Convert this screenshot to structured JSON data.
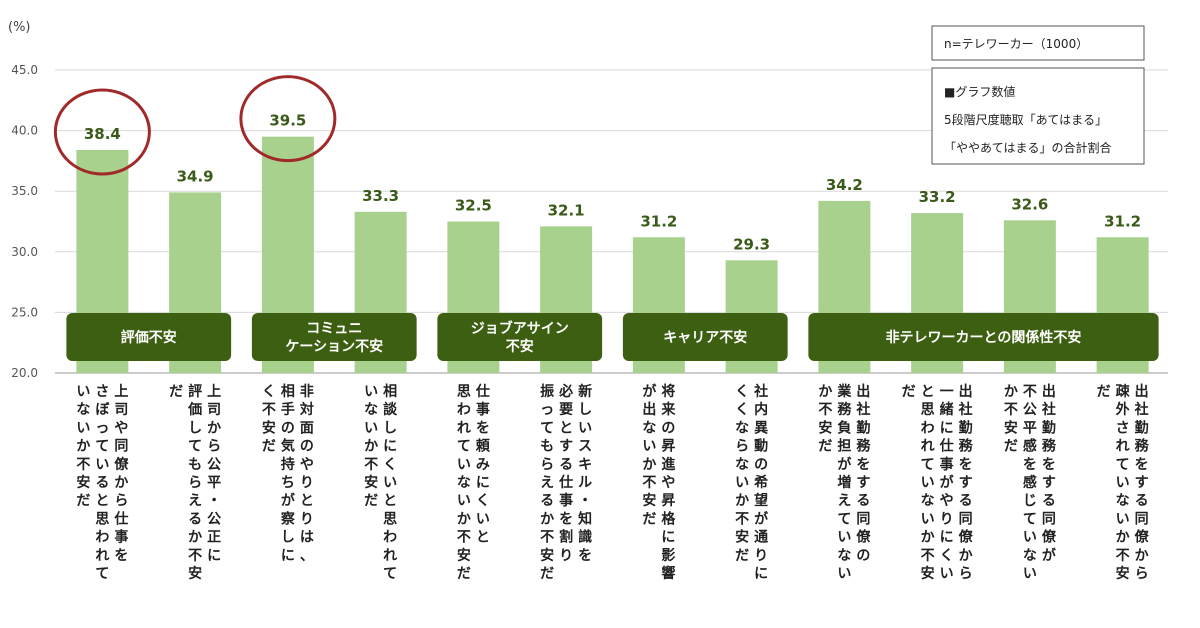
{
  "chart_data": {
    "type": "bar",
    "ylabel": "(%)",
    "ylim": [
      20,
      45
    ],
    "yticks": [
      "20.0",
      "25.0",
      "30.0",
      "35.0",
      "40.0",
      "45.0"
    ],
    "grid": true,
    "bar_color": "#a9d18e",
    "label_color": "#3a5a1a",
    "group_color": "#3d5f12",
    "highlight_color": "#a02a2a",
    "categories": [
      [
        "上司や同僚から仕事を",
        "さぼっていると思われて",
        "いないか不安だ"
      ],
      [
        "上司から公平・公正に",
        "評価してもらえるか不安",
        "だ"
      ],
      [
        "非対面のやりとりは、",
        "相手の気持ちが察しに",
        "く不安だ"
      ],
      [
        "相談しにくいと思われて",
        "いないか不安だ"
      ],
      [
        "仕事を頼みにくいと",
        "思われていないか不安だ"
      ],
      [
        "新しいスキル・知識を",
        "必要とする仕事を割り",
        "振ってもらえるか不安だ"
      ],
      [
        "将来の昇進や昇格に影響",
        "が出ないか不安だ"
      ],
      [
        "社内異動の希望が通りに",
        "くくならないか不安だ"
      ],
      [
        "出社勤務をする同僚の",
        "業務負担が増えていない",
        "か不安だ"
      ],
      [
        "出社勤務をする同僚から",
        "一緒に仕事がやりにくい",
        "と思われていないか不安",
        "だ"
      ],
      [
        "出社勤務をする同僚が",
        "不公平感を感じていない",
        "か不安だ"
      ],
      [
        "出社勤務をする同僚から",
        "疎外されていないか不安",
        "だ"
      ]
    ],
    "values": [
      38.4,
      34.9,
      39.5,
      33.3,
      32.5,
      32.1,
      31.2,
      29.3,
      34.2,
      33.2,
      32.6,
      31.2
    ],
    "value_labels": [
      "38.4",
      "34.9",
      "39.5",
      "33.3",
      "32.5",
      "32.1",
      "31.2",
      "29.3",
      "34.2",
      "33.2",
      "32.6",
      "31.2"
    ],
    "highlighted": [
      0,
      2
    ],
    "groups": [
      {
        "label": [
          "評価不安"
        ],
        "start": 0,
        "end": 1
      },
      {
        "label": [
          "コミュニ",
          "ケーション不安"
        ],
        "start": 2,
        "end": 3
      },
      {
        "label": [
          "ジョブアサイン",
          "不安"
        ],
        "start": 4,
        "end": 5
      },
      {
        "label": [
          "キャリア不安"
        ],
        "start": 6,
        "end": 7
      },
      {
        "label": [
          "非テレワーカーとの関係性不安"
        ],
        "start": 8,
        "end": 11
      }
    ],
    "legend": {
      "sample": "n=テレワーカー（1000）",
      "note": [
        "■グラフ数値",
        "5段階尺度聴取「あてはまる」",
        "「ややあてはまる」の合計割合"
      ]
    }
  }
}
